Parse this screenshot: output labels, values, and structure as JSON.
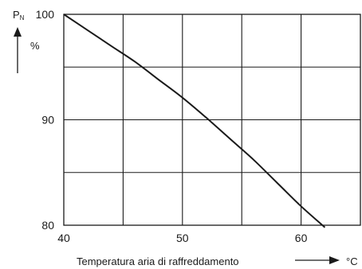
{
  "chart_data": {
    "type": "line",
    "title": "",
    "xlabel": "Temperatura aria di raffreddamento",
    "xunit": "°C",
    "ylabel_main": "P",
    "ylabel_sub": "N",
    "yunit": "%",
    "xlim": [
      40,
      65
    ],
    "ylim": [
      80,
      100
    ],
    "x_ticks": [
      40,
      50,
      60
    ],
    "y_ticks": [
      80,
      90,
      100
    ],
    "x_gridlines": [
      45,
      50,
      55,
      60
    ],
    "y_gridlines": [
      85,
      90,
      95
    ],
    "grid": true,
    "legend": "none",
    "series": [
      {
        "x": [
          40,
          42,
          44,
          46,
          48,
          50,
          52,
          54,
          56,
          58,
          60,
          62
        ],
        "y": [
          100,
          98.5,
          97,
          95.5,
          93.8,
          92.1,
          90.2,
          88.2,
          86.2,
          84,
          81.8,
          79.8
        ]
      }
    ],
    "colors": {
      "line": "#1a1a1a",
      "grid": "#1a1a1a"
    }
  }
}
